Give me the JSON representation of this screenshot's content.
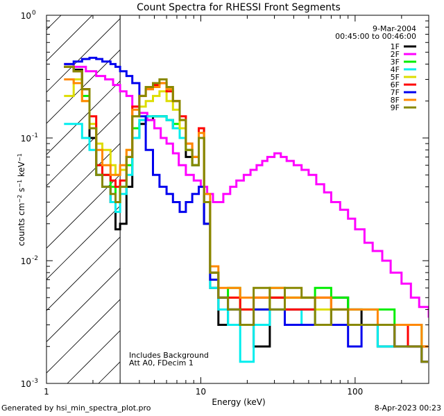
{
  "chart_data": {
    "type": "line",
    "title": "Count Spectra for RHESSI Front Segments",
    "date": "9-Mar-2004",
    "time_range": "00:45:00 to 00:46:00",
    "xlabel": "Energy (keV)",
    "ylabel": "counts cm-2 s-1 keV-1",
    "xscale": "log",
    "yscale": "log",
    "xlim": [
      1,
      300
    ],
    "ylim": [
      0.001,
      1
    ],
    "xticks": [
      {
        "value": 1,
        "label": "1"
      },
      {
        "value": 10,
        "label": "10"
      },
      {
        "value": 100,
        "label": "100"
      }
    ],
    "yticks": [
      {
        "value": 1,
        "label": "10",
        "exp": "0"
      },
      {
        "value": 0.1,
        "label": "10",
        "exp": "-1"
      },
      {
        "value": 0.01,
        "label": "10",
        "exp": "-2"
      },
      {
        "value": 0.001,
        "label": "10",
        "exp": "-3"
      }
    ],
    "shaded_region": {
      "x": [
        1,
        3
      ],
      "style": "diagonal hatch"
    },
    "annotations": [
      "Includes Background",
      "Att A0, FDecim 1"
    ],
    "legend_location": "top-right",
    "series": [
      {
        "name": "1F",
        "color": "#000000",
        "x": [
          1.3,
          1.5,
          1.7,
          1.9,
          2.1,
          2.3,
          2.6,
          2.8,
          3.0,
          3.3,
          3.6,
          4.0,
          4.4,
          4.9,
          5.4,
          6.0,
          6.6,
          7.3,
          8.0,
          8.8,
          9.7,
          10.5,
          11.5,
          13,
          15,
          18,
          22,
          28,
          35,
          45,
          55,
          70,
          90,
          110,
          140,
          180,
          220,
          270
        ],
        "y": [
          0.38,
          0.36,
          0.25,
          0.1,
          0.05,
          0.04,
          0.03,
          0.018,
          0.02,
          0.04,
          0.1,
          0.13,
          0.14,
          0.15,
          0.15,
          0.14,
          0.12,
          0.1,
          0.07,
          0.06,
          0.1,
          0.02,
          0.006,
          0.003,
          0.004,
          0.003,
          0.002,
          0.005,
          0.004,
          0.004,
          0.003,
          0.005,
          0.004,
          0.003,
          0.002,
          0.003,
          0.002,
          0.0015
        ]
      },
      {
        "name": "2F",
        "color": "#ff00ff",
        "x": [
          1.3,
          1.5,
          1.8,
          2.1,
          2.4,
          2.7,
          3.0,
          3.3,
          3.6,
          4.0,
          4.5,
          5.0,
          5.5,
          6.0,
          6.6,
          7.2,
          8.0,
          9.0,
          10.0,
          11.0,
          12.0,
          13.0,
          14.0,
          15.5,
          17,
          19,
          21,
          23,
          25,
          27,
          30,
          33,
          36,
          40,
          45,
          50,
          56,
          63,
          70,
          80,
          90,
          100,
          115,
          130,
          150,
          170,
          200,
          230,
          260,
          300
        ],
        "y": [
          0.4,
          0.38,
          0.35,
          0.32,
          0.3,
          0.27,
          0.24,
          0.22,
          0.18,
          0.16,
          0.14,
          0.12,
          0.1,
          0.09,
          0.075,
          0.06,
          0.05,
          0.045,
          0.04,
          0.035,
          0.03,
          0.03,
          0.035,
          0.04,
          0.045,
          0.05,
          0.055,
          0.06,
          0.065,
          0.07,
          0.075,
          0.07,
          0.065,
          0.06,
          0.055,
          0.05,
          0.042,
          0.036,
          0.03,
          0.026,
          0.022,
          0.018,
          0.014,
          0.012,
          0.01,
          0.008,
          0.0065,
          0.005,
          0.0042,
          0.0035
        ]
      },
      {
        "name": "3F",
        "color": "#00ee00",
        "x": [
          1.3,
          1.5,
          1.7,
          1.9,
          2.1,
          2.3,
          2.6,
          2.8,
          3.0,
          3.3,
          3.6,
          4.0,
          4.4,
          4.9,
          5.4,
          6.0,
          6.6,
          7.3,
          8.0,
          8.8,
          9.7,
          10.5,
          11.5,
          13,
          15,
          18,
          22,
          28,
          35,
          45,
          55,
          70,
          90,
          110,
          140,
          180,
          220,
          270
        ],
        "y": [
          0.38,
          0.35,
          0.22,
          0.12,
          0.06,
          0.05,
          0.04,
          0.03,
          0.04,
          0.06,
          0.12,
          0.14,
          0.15,
          0.15,
          0.15,
          0.14,
          0.13,
          0.1,
          0.08,
          0.06,
          0.12,
          0.03,
          0.008,
          0.005,
          0.006,
          0.004,
          0.004,
          0.006,
          0.005,
          0.005,
          0.006,
          0.005,
          0.004,
          0.004,
          0.004,
          0.003,
          0.003,
          0.002
        ]
      },
      {
        "name": "4F",
        "color": "#00eeee",
        "x": [
          1.3,
          1.5,
          1.7,
          1.9,
          2.1,
          2.3,
          2.6,
          2.8,
          3.0,
          3.3,
          3.6,
          4.0,
          4.4,
          4.9,
          5.4,
          6.0,
          6.6,
          7.3,
          8.0,
          8.8,
          9.7,
          10.5,
          11.5,
          13,
          15,
          18,
          22,
          28,
          35,
          45,
          55,
          70,
          90,
          110,
          140,
          180,
          220,
          270
        ],
        "y": [
          0.13,
          0.13,
          0.1,
          0.08,
          0.05,
          0.04,
          0.03,
          0.025,
          0.035,
          0.05,
          0.1,
          0.14,
          0.15,
          0.15,
          0.15,
          0.14,
          0.12,
          0.1,
          0.08,
          0.07,
          0.1,
          0.03,
          0.006,
          0.004,
          0.003,
          0.0015,
          0.003,
          0.004,
          0.003,
          0.004,
          0.003,
          0.003,
          0.003,
          0.003,
          0.002,
          0.002,
          0.002,
          0.002
        ]
      },
      {
        "name": "5F",
        "color": "#dddd00",
        "x": [
          1.3,
          1.5,
          1.7,
          1.9,
          2.1,
          2.3,
          2.6,
          2.8,
          3.0,
          3.3,
          3.6,
          4.0,
          4.4,
          4.9,
          5.4,
          6.0,
          6.6,
          7.3,
          8.0,
          8.8,
          9.7,
          10.5,
          11.5,
          13,
          15,
          18,
          22,
          28,
          35,
          45,
          55,
          70,
          90,
          110,
          140,
          180,
          220,
          270
        ],
        "y": [
          0.22,
          0.3,
          0.2,
          0.13,
          0.09,
          0.08,
          0.06,
          0.05,
          0.055,
          0.08,
          0.15,
          0.18,
          0.2,
          0.22,
          0.24,
          0.2,
          0.17,
          0.12,
          0.08,
          0.07,
          0.1,
          0.03,
          0.007,
          0.005,
          0.005,
          0.004,
          0.004,
          0.005,
          0.005,
          0.005,
          0.004,
          0.004,
          0.003,
          0.003,
          0.003,
          0.003,
          0.002,
          0.002
        ]
      },
      {
        "name": "6F",
        "color": "#ff0000",
        "x": [
          1.3,
          1.5,
          1.7,
          1.9,
          2.1,
          2.3,
          2.6,
          2.8,
          3.0,
          3.3,
          3.6,
          4.0,
          4.4,
          4.9,
          5.4,
          6.0,
          6.6,
          7.3,
          8.0,
          8.8,
          9.7,
          10.5,
          11.5,
          13,
          15,
          18,
          22,
          28,
          35,
          45,
          55,
          70,
          90,
          110,
          140,
          180,
          220,
          270
        ],
        "y": [
          0.38,
          0.35,
          0.25,
          0.15,
          0.06,
          0.05,
          0.045,
          0.04,
          0.045,
          0.07,
          0.18,
          0.22,
          0.25,
          0.27,
          0.28,
          0.24,
          0.2,
          0.15,
          0.09,
          0.07,
          0.12,
          0.03,
          0.008,
          0.005,
          0.005,
          0.004,
          0.005,
          0.005,
          0.004,
          0.004,
          0.005,
          0.004,
          0.003,
          0.003,
          0.003,
          0.003,
          0.002,
          0.002
        ]
      },
      {
        "name": "7F",
        "color": "#0000ee",
        "x": [
          1.3,
          1.5,
          1.7,
          1.9,
          2.1,
          2.3,
          2.6,
          2.8,
          3.0,
          3.3,
          3.6,
          4.0,
          4.4,
          4.9,
          5.4,
          6.0,
          6.6,
          7.3,
          8.0,
          8.8,
          9.7,
          10.5,
          11.5,
          13,
          15,
          18,
          22,
          28,
          35,
          45,
          55,
          70,
          90,
          110,
          140,
          180,
          220,
          270
        ],
        "y": [
          0.4,
          0.42,
          0.44,
          0.45,
          0.44,
          0.42,
          0.4,
          0.38,
          0.35,
          0.32,
          0.28,
          0.15,
          0.08,
          0.05,
          0.04,
          0.035,
          0.03,
          0.025,
          0.03,
          0.035,
          0.04,
          0.02,
          0.007,
          0.005,
          0.004,
          0.003,
          0.004,
          0.004,
          0.003,
          0.003,
          0.003,
          0.003,
          0.002,
          0.003,
          0.003,
          0.002,
          0.002,
          0.0015
        ]
      },
      {
        "name": "8F",
        "color": "#ff8800",
        "x": [
          1.3,
          1.5,
          1.7,
          1.9,
          2.1,
          2.3,
          2.6,
          2.8,
          3.0,
          3.3,
          3.6,
          4.0,
          4.4,
          4.9,
          5.4,
          6.0,
          6.6,
          7.3,
          8.0,
          8.8,
          9.7,
          10.5,
          11.5,
          13,
          15,
          18,
          22,
          28,
          35,
          45,
          55,
          70,
          90,
          110,
          140,
          180,
          220,
          270
        ],
        "y": [
          0.3,
          0.28,
          0.2,
          0.12,
          0.08,
          0.06,
          0.05,
          0.05,
          0.06,
          0.08,
          0.17,
          0.22,
          0.25,
          0.26,
          0.28,
          0.25,
          0.2,
          0.14,
          0.09,
          0.07,
          0.11,
          0.035,
          0.009,
          0.006,
          0.006,
          0.005,
          0.005,
          0.006,
          0.005,
          0.005,
          0.005,
          0.004,
          0.004,
          0.004,
          0.003,
          0.003,
          0.003,
          0.002
        ]
      },
      {
        "name": "9F",
        "color": "#888800",
        "x": [
          1.3,
          1.5,
          1.7,
          1.9,
          2.1,
          2.3,
          2.6,
          2.8,
          3.0,
          3.3,
          3.6,
          4.0,
          4.4,
          4.9,
          5.4,
          6.0,
          6.6,
          7.3,
          8.0,
          8.8,
          9.7,
          10.5,
          11.5,
          13,
          15,
          18,
          22,
          28,
          35,
          45,
          55,
          70,
          90,
          110,
          140,
          180,
          220,
          270
        ],
        "y": [
          0.38,
          0.35,
          0.25,
          0.12,
          0.05,
          0.04,
          0.035,
          0.03,
          0.04,
          0.07,
          0.15,
          0.22,
          0.26,
          0.28,
          0.3,
          0.26,
          0.2,
          0.14,
          0.08,
          0.06,
          0.1,
          0.03,
          0.008,
          0.005,
          0.004,
          0.003,
          0.006,
          0.004,
          0.006,
          0.005,
          0.003,
          0.004,
          0.003,
          0.003,
          0.003,
          0.002,
          0.002,
          0.0015
        ]
      }
    ]
  },
  "footer": {
    "generated_by": "Generated by hsi_min_spectra_plot.pro",
    "timestamp": "8-Apr-2023 00:23"
  }
}
